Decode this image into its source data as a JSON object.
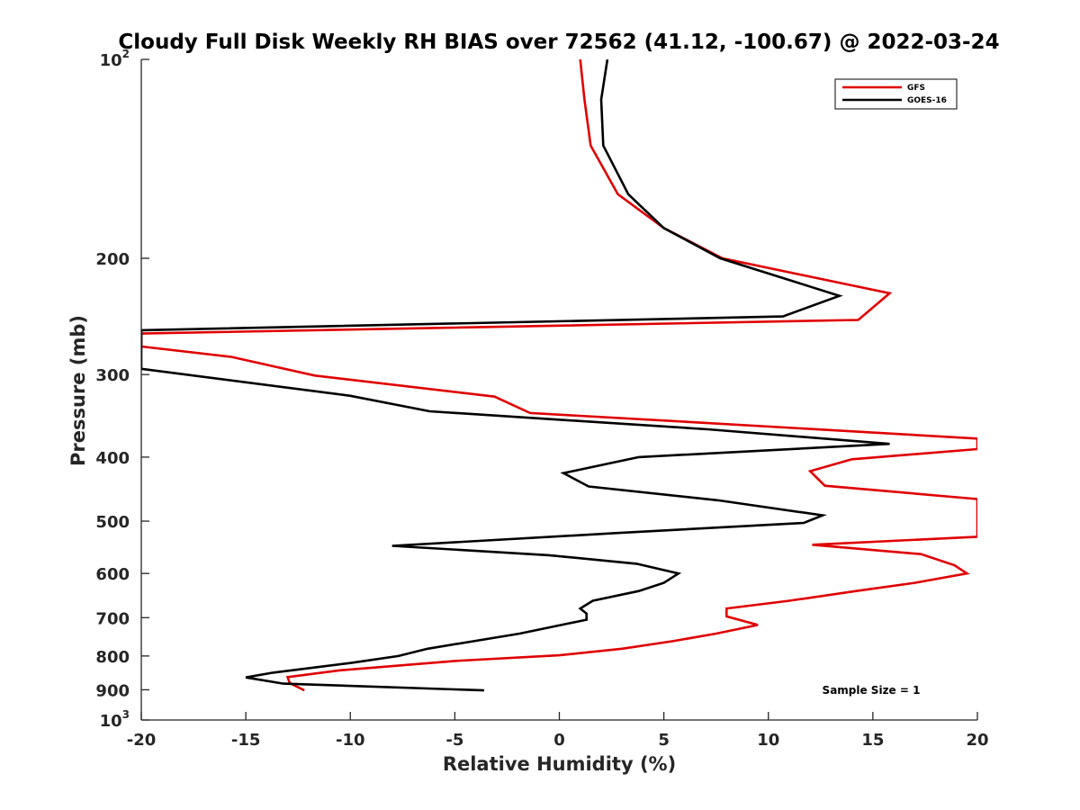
{
  "chart_data": {
    "type": "line",
    "title": "Cloudy Full Disk Weekly RH BIAS over 72562 (41.12, -100.67) @ 2022-03-24",
    "xlabel": "Relative Humidity (%)",
    "ylabel": "Pressure (mb)",
    "xlim": [
      -20,
      20
    ],
    "ylim": [
      1000,
      100
    ],
    "y_scale": "log",
    "x_ticks": [
      -20,
      -15,
      -10,
      -5,
      0,
      5,
      10,
      15,
      20
    ],
    "x_tick_labels": [
      "-20",
      "-15",
      "-10",
      "-5",
      "0",
      "5",
      "10",
      "15",
      "20"
    ],
    "y_ticks": [
      100,
      200,
      300,
      400,
      500,
      600,
      700,
      800,
      900,
      1000
    ],
    "y_tick_labels": [
      {
        "base": "10",
        "sup": "2"
      },
      {
        "base": "200",
        "sup": ""
      },
      {
        "base": "300",
        "sup": ""
      },
      {
        "base": "400",
        "sup": ""
      },
      {
        "base": "500",
        "sup": ""
      },
      {
        "base": "600",
        "sup": ""
      },
      {
        "base": "700",
        "sup": ""
      },
      {
        "base": "800",
        "sup": ""
      },
      {
        "base": "900",
        "sup": ""
      },
      {
        "base": "10",
        "sup": "3"
      }
    ],
    "grid": false,
    "legend_position": "top-right",
    "annotation": "Sample Size = 1",
    "series": [
      {
        "name": "GFS",
        "color": "#e00000",
        "points": [
          [
            1.0,
            100
          ],
          [
            1.2,
            115
          ],
          [
            1.5,
            135
          ],
          [
            2.8,
            160
          ],
          [
            5.0,
            180
          ],
          [
            7.8,
            200
          ],
          [
            15.8,
            226
          ],
          [
            14.3,
            248
          ],
          [
            -20.0,
            260
          ],
          [
            -20.0,
            272
          ],
          [
            -15.7,
            282
          ],
          [
            -11.7,
            301
          ],
          [
            -3.1,
            324
          ],
          [
            -1.4,
            343
          ],
          [
            7.0,
            355
          ],
          [
            20.0,
            375
          ],
          [
            20.0,
            389
          ],
          [
            14.0,
            403
          ],
          [
            12.0,
            420
          ],
          [
            12.7,
            442
          ],
          [
            20.0,
            463
          ],
          [
            20.0,
            528
          ],
          [
            12.1,
            543
          ],
          [
            17.3,
            561
          ],
          [
            18.9,
            583
          ],
          [
            19.5,
            600
          ],
          [
            17.0,
            620
          ],
          [
            14.2,
            638
          ],
          [
            11.0,
            660
          ],
          [
            8.0,
            678
          ],
          [
            8.0,
            697
          ],
          [
            9.5,
            718
          ],
          [
            7.5,
            740
          ],
          [
            5.4,
            760
          ],
          [
            3.0,
            780
          ],
          [
            0.0,
            798
          ],
          [
            -5.0,
            814
          ],
          [
            -10.5,
            841
          ],
          [
            -13.0,
            861
          ],
          [
            -12.9,
            879
          ],
          [
            -12.2,
            902
          ]
        ]
      },
      {
        "name": "GOES-16",
        "color": "#000000",
        "points": [
          [
            2.3,
            100
          ],
          [
            2.0,
            115
          ],
          [
            2.1,
            135
          ],
          [
            3.3,
            160
          ],
          [
            5.0,
            180
          ],
          [
            7.7,
            200
          ],
          [
            13.4,
            228
          ],
          [
            10.7,
            245
          ],
          [
            -20.0,
            257
          ],
          [
            -20.0,
            294
          ],
          [
            -10.0,
            323
          ],
          [
            -6.2,
            341
          ],
          [
            7.1,
            363
          ],
          [
            15.8,
            382
          ],
          [
            3.8,
            400
          ],
          [
            0.2,
            423
          ],
          [
            1.4,
            443
          ],
          [
            7.6,
            465
          ],
          [
            12.6,
            490
          ],
          [
            11.7,
            503
          ],
          [
            2.8,
            521
          ],
          [
            -8.0,
            545
          ],
          [
            -0.5,
            563
          ],
          [
            3.7,
            580
          ],
          [
            5.7,
            600
          ],
          [
            5.0,
            620
          ],
          [
            3.8,
            638
          ],
          [
            1.6,
            660
          ],
          [
            1.0,
            678
          ],
          [
            1.3,
            690
          ],
          [
            1.3,
            705
          ],
          [
            -1.9,
            740
          ],
          [
            -6.3,
            780
          ],
          [
            -7.7,
            800
          ],
          [
            -10.0,
            820
          ],
          [
            -13.7,
            848
          ],
          [
            -15.0,
            862
          ],
          [
            -13.2,
            881
          ],
          [
            -3.6,
            902
          ]
        ]
      }
    ]
  }
}
